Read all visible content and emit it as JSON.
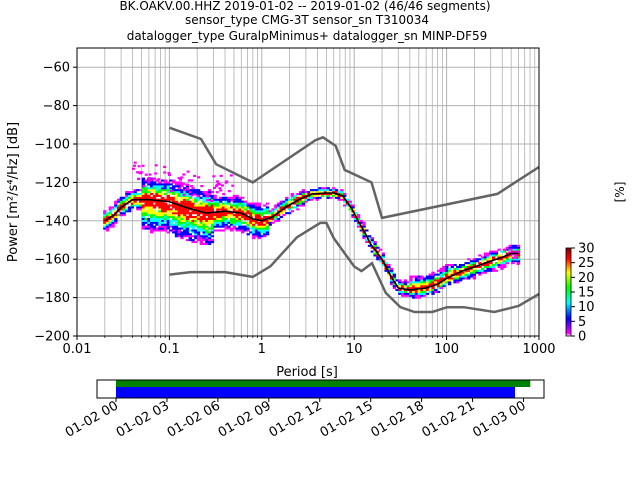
{
  "chart_data": [
    {
      "type": "heatmap",
      "title": {
        "line1": "BK.OAKV.00.HHZ   2019-01-02 -- 2019-01-02  (46/46 segments)",
        "line2": "sensor_type CMG-3T sensor_sn T310034",
        "line3": "datalogger_type GuralpMinimus+ datalogger_sn MINP-DF59"
      },
      "xlabel": "Period [s]",
      "ylabel": "Power [m²/s⁴/Hz] [dB]",
      "x_scale": "log",
      "xlim": [
        0.01,
        1000
      ],
      "ylim": [
        -200,
        -50
      ],
      "x_ticks": [
        {
          "value": 0.01,
          "label": "0.01"
        },
        {
          "value": 0.1,
          "label": "0.1"
        },
        {
          "value": 1,
          "label": "1"
        },
        {
          "value": 10,
          "label": "10"
        },
        {
          "value": 100,
          "label": "100"
        },
        {
          "value": 1000,
          "label": "1000"
        }
      ],
      "y_ticks": [
        {
          "value": -60,
          "label": "−60"
        },
        {
          "value": -80,
          "label": "−80"
        },
        {
          "value": -100,
          "label": "−100"
        },
        {
          "value": -120,
          "label": "−120"
        },
        {
          "value": -140,
          "label": "−140"
        },
        {
          "value": -160,
          "label": "−160"
        },
        {
          "value": -180,
          "label": "−180"
        },
        {
          "value": -200,
          "label": "−200"
        }
      ],
      "grid": true,
      "colorbar": {
        "label": "[%]",
        "range": [
          0,
          30
        ],
        "ticks": [
          {
            "value": 0,
            "label": "0"
          },
          {
            "value": 5,
            "label": "5"
          },
          {
            "value": 10,
            "label": "10"
          },
          {
            "value": 15,
            "label": "15"
          },
          {
            "value": 20,
            "label": "20"
          },
          {
            "value": 25,
            "label": "25"
          },
          {
            "value": 30,
            "label": "30"
          }
        ],
        "colormap": [
          "#ffffff",
          "#ff00ff",
          "#0000ff",
          "#00ffff",
          "#00ff00",
          "#ffff00",
          "#ff0000",
          "#800000"
        ]
      },
      "noise_models": {
        "color": "#646464",
        "high": {
          "x": [
            0.1,
            0.22,
            0.32,
            0.8,
            3.8,
            4.6,
            6.3,
            7.9,
            15.4,
            20,
            354.8,
            1000
          ],
          "y": [
            -91.5,
            -97.4,
            -110.5,
            -120,
            -98,
            -96.5,
            -101,
            -113.5,
            -120,
            -138.5,
            -126,
            -112
          ]
        },
        "low": {
          "x": [
            0.1,
            0.17,
            0.4,
            0.8,
            1.24,
            2.4,
            4.3,
            5,
            6,
            10,
            12,
            15.6,
            21.9,
            31.6,
            45,
            70,
            101,
            154,
            328,
            600,
            1000
          ],
          "y": [
            -168,
            -166.7,
            -166.7,
            -169.2,
            -163.7,
            -148.6,
            -141.1,
            -141.1,
            -149,
            -163.8,
            -166.2,
            -162.1,
            -177.5,
            -185,
            -187.5,
            -187.5,
            -185,
            -185,
            -187.5,
            -184.4,
            -178.1
          ]
        }
      },
      "mean_curve": {
        "color": "#000000",
        "x": [
          0.02,
          0.025,
          0.03,
          0.04,
          0.06,
          0.1,
          0.15,
          0.25,
          0.4,
          0.6,
          0.8,
          1.0,
          1.3,
          1.8,
          2.5,
          3.5,
          5.0,
          6.0,
          7.5,
          9.5,
          11,
          13,
          15,
          20,
          25,
          30,
          40,
          60,
          80,
          100,
          150,
          200,
          300,
          400,
          500,
          600
        ],
        "y": [
          -140,
          -137,
          -133,
          -129,
          -129,
          -130,
          -133,
          -136,
          -135,
          -136,
          -139,
          -140,
          -138,
          -133,
          -129,
          -126,
          -125.5,
          -125.5,
          -127,
          -134,
          -140,
          -146,
          -152,
          -160,
          -169,
          -175,
          -176,
          -175,
          -173,
          -170,
          -166,
          -164,
          -161,
          -159,
          -157,
          -157
        ]
      },
      "segments_timeline": {
        "tick_labels": [
          "01-02 00",
          "01-02 03",
          "01-02 06",
          "01-02 09",
          "01-02 12",
          "01-02 15",
          "01-02 18",
          "01-02 21",
          "01-03 00"
        ],
        "data_color": "#008000",
        "processed_color": "#0000ff",
        "data_span_hours": [
          0,
          24.4
        ],
        "processed_span_hours": [
          0,
          23.5
        ]
      }
    }
  ]
}
